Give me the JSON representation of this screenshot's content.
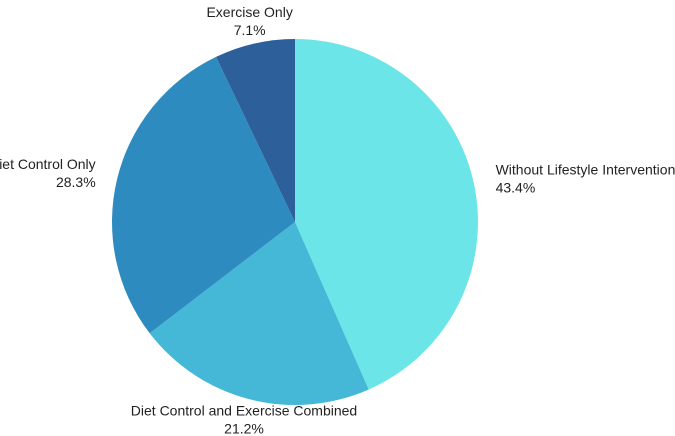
{
  "chart_data": {
    "type": "pie",
    "categories": [
      "Without Lifestyle Interventions",
      "Diet Control and Exercise Combined",
      "Diet Control Only",
      "Exercise Only"
    ],
    "values": [
      43.4,
      21.2,
      28.3,
      7.1
    ],
    "value_labels": [
      "43.4%",
      "21.2%",
      "28.3%",
      "7.1%"
    ],
    "colors": [
      "#6be5e8",
      "#44b8d6",
      "#2e8bbf",
      "#2d5f9a"
    ]
  }
}
